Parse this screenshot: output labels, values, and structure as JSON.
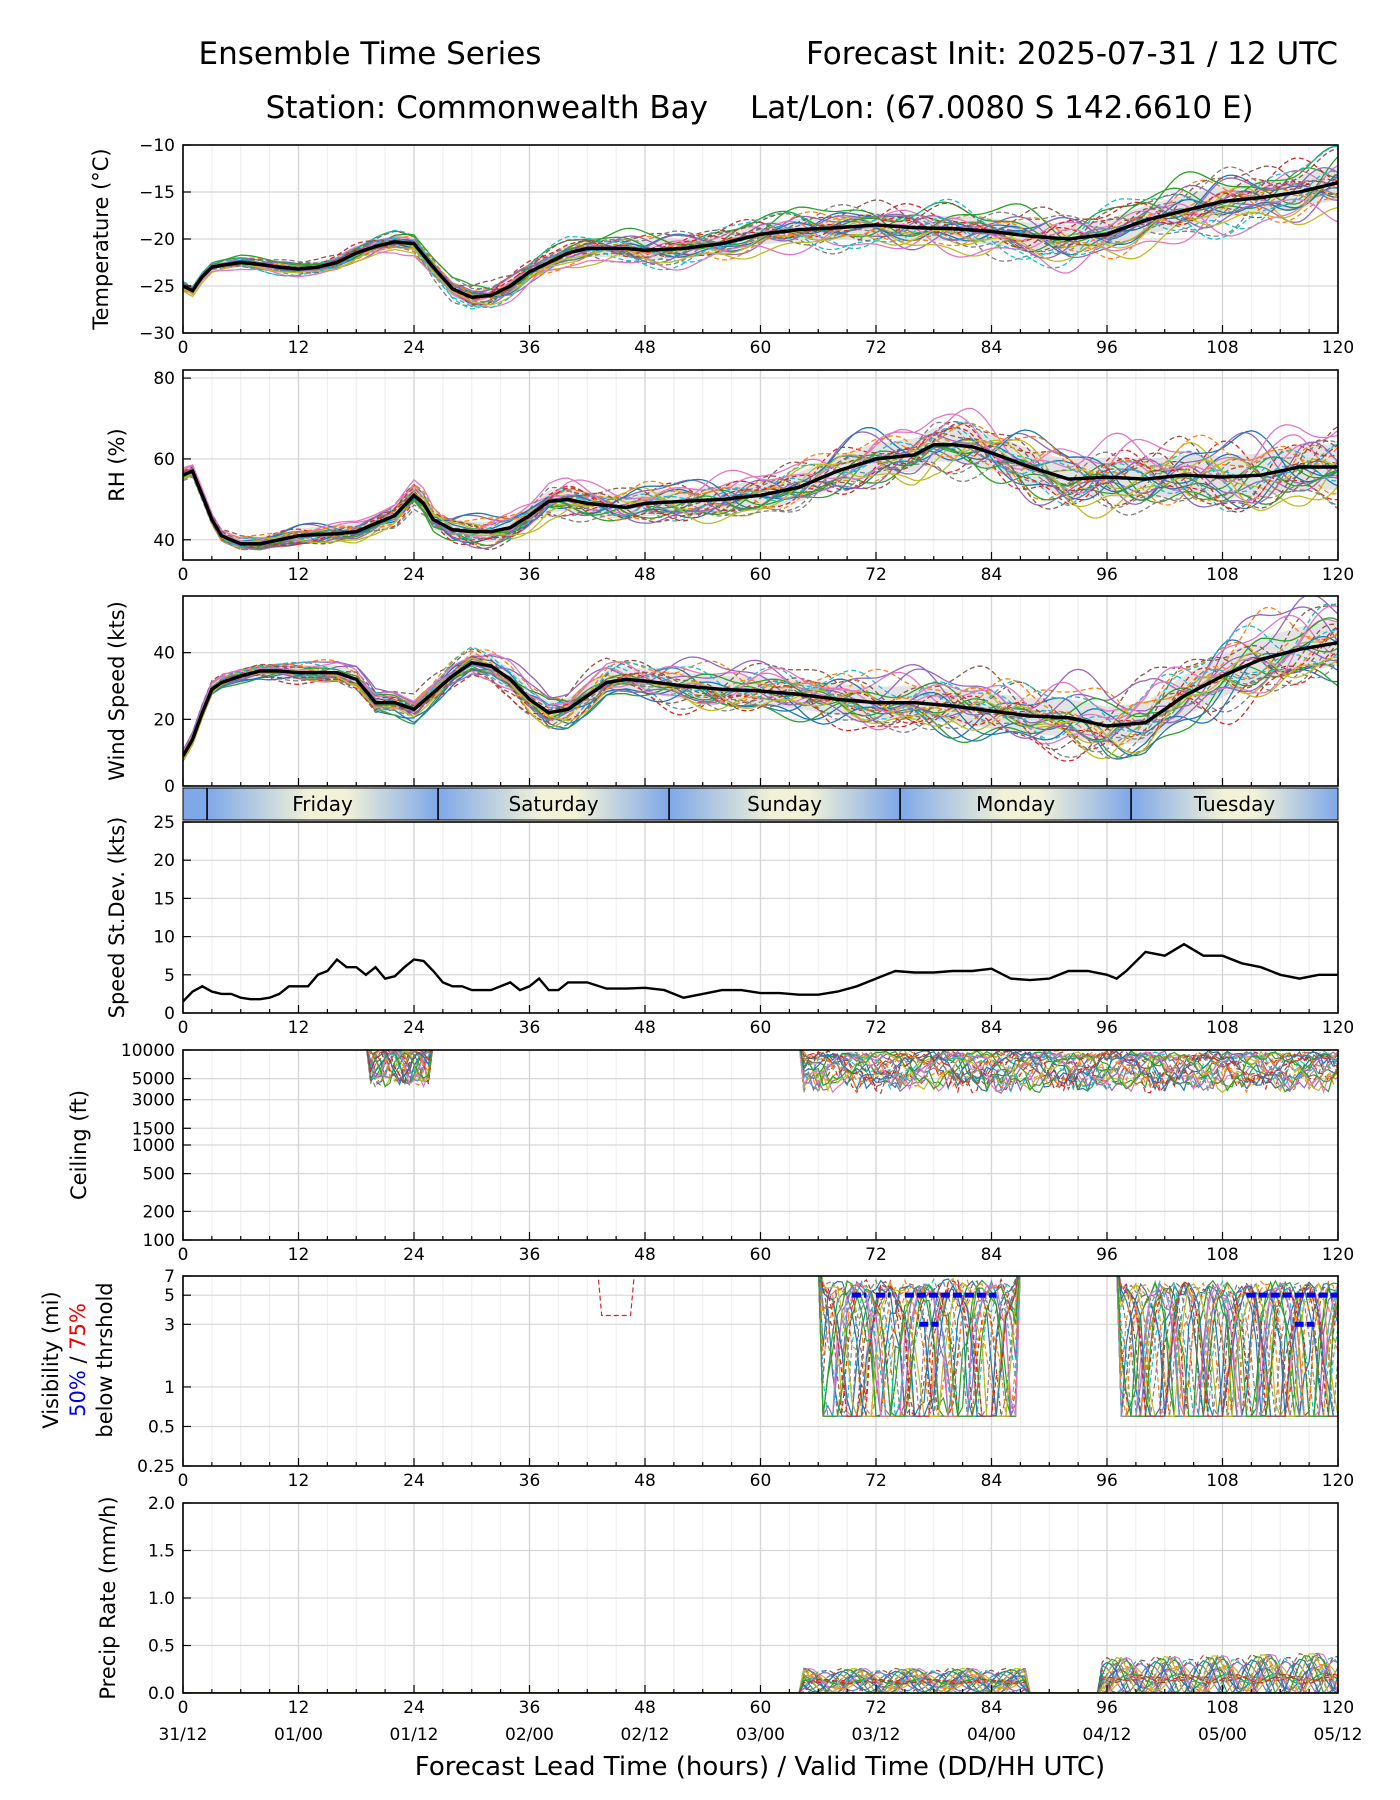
{
  "header": {
    "title": "Ensemble Time Series",
    "init": "Forecast Init: 2025-07-31 / 12 UTC",
    "station": "Station: Commonwealth Bay",
    "latlon": "Lat/Lon: (67.0080 S 142.6610 E)"
  },
  "x_axis": {
    "label": "Forecast Lead Time (hours) / Valid Time (DD/HH UTC)",
    "range": [
      0,
      120
    ],
    "hour_ticks": [
      0,
      12,
      24,
      36,
      48,
      60,
      72,
      84,
      96,
      108,
      120
    ],
    "hour_tick_labels": [
      "0",
      "12",
      "24",
      "36",
      "48",
      "60",
      "72",
      "84",
      "96",
      "108",
      "120"
    ],
    "valid_time_labels": [
      "31/12",
      "01/00",
      "01/12",
      "02/00",
      "02/12",
      "03/00",
      "03/12",
      "04/00",
      "04/12",
      "05/00",
      "05/12"
    ]
  },
  "day_strip": {
    "days": [
      {
        "label": "Friday",
        "start": 2.5,
        "end": 26.5
      },
      {
        "label": "Saturday",
        "start": 26.5,
        "end": 50.5
      },
      {
        "label": "Sunday",
        "start": 50.5,
        "end": 74.5
      },
      {
        "label": "Monday",
        "start": 74.5,
        "end": 98.5
      },
      {
        "label": "Tuesday",
        "start": 98.5,
        "end": 120
      }
    ],
    "colors": {
      "night": "#7fa8e8",
      "day": "#f2f2d8"
    }
  },
  "visibility_label": {
    "line1": "Visibility (mi)",
    "p50": "50%",
    "sep": " / ",
    "p75": "75%",
    "line3": "below thrshold",
    "p50_color": "#0000ee",
    "p75_color": "#ee0000"
  },
  "chart_data": [
    {
      "type": "line",
      "panel": "temperature",
      "ylabel": "Temperature (°C)",
      "ylim": [
        -30,
        -10
      ],
      "yticks": [
        -30,
        -25,
        -20,
        -15,
        -10
      ],
      "ytick_labels": [
        "−30",
        "−25",
        "−20",
        "−15",
        "−10"
      ],
      "spread_band": true,
      "series": [
        {
          "role": "ensemble-mean",
          "x": [
            0,
            1,
            2,
            3,
            4,
            6,
            8,
            10,
            12,
            14,
            16,
            18,
            20,
            22,
            24,
            26,
            28,
            30,
            32,
            34,
            36,
            38,
            40,
            42,
            44,
            46,
            48,
            52,
            56,
            60,
            64,
            68,
            72,
            76,
            80,
            84,
            88,
            92,
            96,
            100,
            104,
            108,
            112,
            116,
            120
          ],
          "values": [
            -25,
            -25.5,
            -24,
            -23,
            -22.8,
            -22.5,
            -22.7,
            -23,
            -23.2,
            -23,
            -22.5,
            -21.5,
            -20.8,
            -20.3,
            -20.5,
            -23,
            -25.3,
            -26.2,
            -26,
            -25,
            -23.5,
            -22.5,
            -21.5,
            -21,
            -21,
            -21,
            -21.2,
            -21,
            -20.5,
            -19.5,
            -19,
            -18.8,
            -18.5,
            -18.8,
            -18.9,
            -19.2,
            -19.7,
            -20,
            -19.5,
            -18,
            -17,
            -16,
            -15.6,
            -15,
            -14
          ]
        }
      ]
    },
    {
      "type": "line",
      "panel": "rh",
      "ylabel": "RH (%)",
      "ylim": [
        35,
        82
      ],
      "yticks": [
        40,
        60,
        80
      ],
      "ytick_labels": [
        "40",
        "60",
        "80"
      ],
      "spread_band": true,
      "series": [
        {
          "role": "ensemble-mean",
          "x": [
            0,
            1,
            2,
            3,
            4,
            6,
            8,
            10,
            12,
            14,
            16,
            18,
            20,
            22,
            24,
            25,
            26,
            28,
            30,
            32,
            34,
            36,
            38,
            40,
            42,
            44,
            46,
            48,
            52,
            56,
            60,
            64,
            68,
            72,
            76,
            78,
            80,
            82,
            84,
            88,
            92,
            96,
            100,
            104,
            108,
            112,
            116,
            120
          ],
          "values": [
            56,
            57,
            51,
            45,
            41,
            39,
            39,
            40,
            41,
            41.3,
            41.5,
            42,
            44,
            46,
            51,
            49,
            45,
            42.5,
            42,
            42,
            43,
            46,
            49.5,
            50,
            49,
            48.5,
            48,
            49,
            49.5,
            50,
            51,
            53,
            57,
            60,
            61,
            63.5,
            63.5,
            63,
            61.5,
            58,
            55,
            55.5,
            55,
            56,
            55.5,
            56,
            58,
            58
          ]
        }
      ]
    },
    {
      "type": "line",
      "panel": "wind-speed",
      "ylabel": "Wind Speed (kts)",
      "ylim": [
        0,
        57
      ],
      "yticks": [
        0,
        20,
        40
      ],
      "ytick_labels": [
        "0",
        "20",
        "40"
      ],
      "spread_band": true,
      "series": [
        {
          "role": "ensemble-mean",
          "x": [
            0,
            1,
            2,
            3,
            4,
            6,
            8,
            10,
            12,
            14,
            16,
            18,
            20,
            22,
            24,
            26,
            28,
            30,
            32,
            34,
            36,
            38,
            40,
            42,
            44,
            46,
            48,
            52,
            56,
            60,
            64,
            68,
            72,
            76,
            80,
            84,
            88,
            92,
            96,
            100,
            104,
            108,
            112,
            116,
            120
          ],
          "values": [
            9,
            14,
            22,
            29,
            31,
            33,
            34.5,
            34.5,
            34,
            34,
            34,
            32,
            25,
            25,
            23,
            28,
            33,
            37,
            36,
            32,
            26,
            22,
            23,
            27,
            31,
            32,
            31.5,
            30,
            29,
            28.5,
            27.5,
            26,
            25,
            25,
            24,
            22.5,
            21,
            20.5,
            18,
            19,
            27,
            33,
            38,
            41,
            43
          ]
        }
      ]
    },
    {
      "type": "line",
      "panel": "speed-stdev",
      "ylabel": "Speed St.Dev. (kts)",
      "ylim": [
        0,
        25
      ],
      "yticks": [
        0,
        5,
        10,
        15,
        20,
        25
      ],
      "ytick_labels": [
        "0",
        "5",
        "10",
        "15",
        "20",
        "25"
      ],
      "series": [
        {
          "role": "stdev",
          "x": [
            0,
            1,
            2,
            3,
            4,
            5,
            6,
            7,
            8,
            9,
            10,
            11,
            12,
            13,
            14,
            15,
            16,
            17,
            18,
            19,
            20,
            21,
            22,
            23,
            24,
            25,
            26,
            27,
            28,
            29,
            30,
            31,
            32,
            33,
            34,
            35,
            36,
            37,
            38,
            39,
            40,
            42,
            44,
            46,
            48,
            50,
            52,
            54,
            56,
            58,
            60,
            62,
            64,
            66,
            68,
            70,
            72,
            74,
            76,
            78,
            80,
            82,
            84,
            86,
            88,
            90,
            92,
            94,
            96,
            97,
            98,
            100,
            102,
            104,
            106,
            108,
            110,
            112,
            114,
            116,
            118,
            120
          ],
          "values": [
            1.5,
            2.8,
            3.5,
            2.8,
            2.5,
            2.5,
            2,
            1.8,
            1.8,
            2,
            2.5,
            3.5,
            3.5,
            3.5,
            5,
            5.5,
            7,
            6,
            6,
            5,
            6,
            4.5,
            4.8,
            6,
            7,
            6.8,
            5.5,
            4,
            3.5,
            3.5,
            3,
            3,
            3,
            3.5,
            4,
            3,
            3.5,
            4.5,
            3,
            3,
            4,
            4,
            3.2,
            3.2,
            3.3,
            3,
            2,
            2.5,
            3,
            3,
            2.6,
            2.6,
            2.4,
            2.4,
            2.8,
            3.5,
            4.5,
            5.5,
            5.3,
            5.3,
            5.5,
            5.5,
            5.8,
            4.5,
            4.3,
            4.5,
            5.5,
            5.5,
            5,
            4.5,
            5.5,
            8,
            7.5,
            9,
            7.5,
            7.5,
            6.5,
            6,
            5,
            4.5,
            5,
            5
          ]
        }
      ]
    },
    {
      "type": "line",
      "panel": "ceiling",
      "ylabel": "Ceiling (ft)",
      "yscale": "log",
      "ylim": [
        100,
        10000
      ],
      "yticks": [
        100,
        200,
        500,
        1000,
        1500,
        3000,
        5000,
        10000
      ],
      "ytick_labels": [
        "100",
        "200",
        "500",
        "1000",
        "1500",
        "3000",
        "5000",
        "10000"
      ]
    },
    {
      "type": "line",
      "panel": "visibility",
      "ylabel": "Visibility (mi)",
      "yscale": "log",
      "ylim": [
        0.25,
        7
      ],
      "yticks": [
        0.25,
        0.5,
        1,
        3,
        5,
        7
      ],
      "ytick_labels": [
        "0.25",
        "0.5",
        "1",
        "3",
        "5",
        "7"
      ],
      "threshold_markers": [
        {
          "name": "50%",
          "color": "#0000ee",
          "y": 5,
          "segments": [
            [
              69.5,
              71
            ],
            [
              72,
              73.5
            ],
            [
              75,
              84.5
            ],
            [
              110.5,
              120
            ]
          ]
        },
        {
          "name": "50%",
          "color": "#0000ee",
          "y": 3,
          "segments": [
            [
              76.5,
              78.5
            ],
            [
              115.5,
              117.5
            ]
          ]
        }
      ]
    },
    {
      "type": "line",
      "panel": "precip",
      "ylabel": "Precip Rate (mm/h)",
      "ylim": [
        0,
        2
      ],
      "yticks": [
        0,
        0.5,
        1,
        1.5,
        2
      ],
      "ytick_labels": [
        "0.0",
        "0.5",
        "1.0",
        "1.5",
        "2.0"
      ]
    }
  ]
}
